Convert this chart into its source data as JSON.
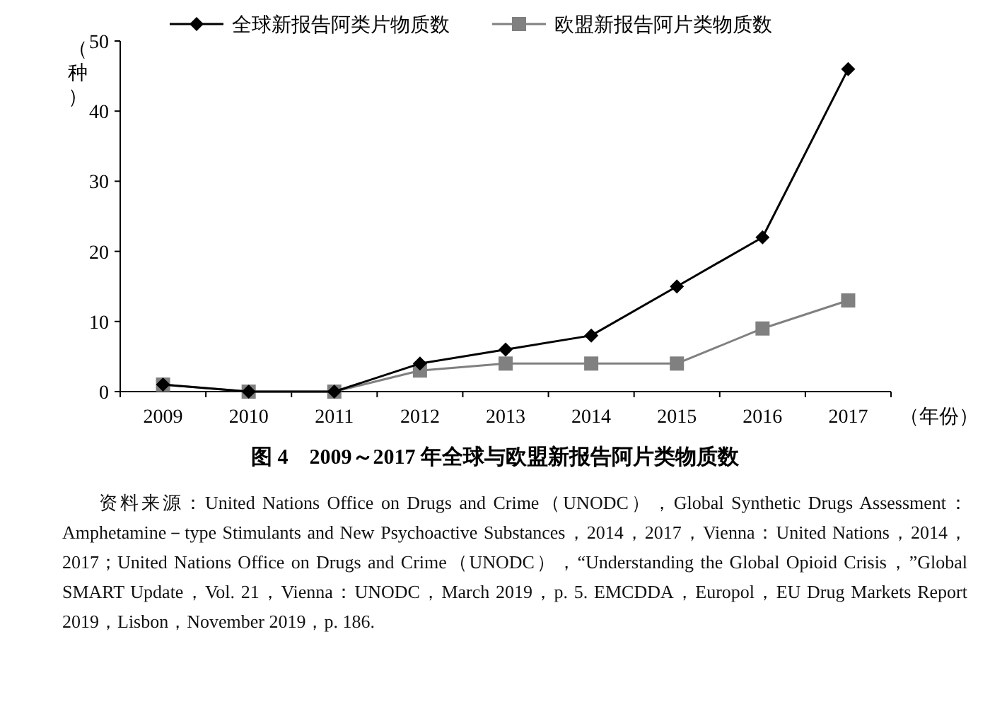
{
  "chart_data": {
    "type": "line",
    "title": "图 4　2009～2017 年全球与欧盟新报告阿片类物质数",
    "ylabel": "（种）",
    "xlabel": "（年份）",
    "categories": [
      "2009",
      "2010",
      "2011",
      "2012",
      "2013",
      "2014",
      "2015",
      "2016",
      "2017"
    ],
    "series": [
      {
        "name": "全球新报告阿类片物质数",
        "color": "#000000",
        "marker": "diamond",
        "values": [
          1,
          0,
          0,
          4,
          6,
          8,
          15,
          22,
          46
        ]
      },
      {
        "name": "欧盟新报告阿片类物质数",
        "color": "#808080",
        "marker": "square",
        "values": [
          1,
          0,
          0,
          3,
          4,
          4,
          4,
          9,
          13
        ]
      }
    ],
    "ylim": [
      0,
      50
    ],
    "yticks": [
      0,
      10,
      20,
      30,
      40,
      50
    ],
    "grid": false,
    "legend": "top",
    "line_style": "solid",
    "annotations": [
      "资料来源：United Nations Office on Drugs and Crime（UNODC），Global Synthetic Drugs Assessment：Amphetamine－type Stimulants and New Psychoactive Substances，2014，2017，Vienna：United Nations，2014，2017；United Nations Office on Drugs and Crime（UNODC），“Understanding the Global Opioid Crisis，”Global SMART Update，Vol. 21，Vienna：UNODC，March 2019，p. 5. EMCDDA，Europol，EU Drug Markets Report 2019，Lisbon，November 2019，p. 186."
    ]
  }
}
